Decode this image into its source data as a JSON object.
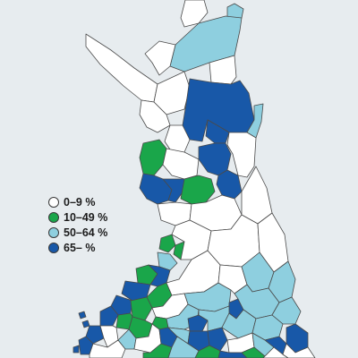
{
  "map": {
    "background": "#e7ecef",
    "land_color": "#ffffff",
    "border_color": "#4a4a4a",
    "bins": [
      {
        "key": "b0",
        "label": "0–9 %",
        "color": "#ffffff"
      },
      {
        "key": "b1",
        "label": "10–49 %",
        "color": "#1aa64a"
      },
      {
        "key": "b2",
        "label": "50–64 %",
        "color": "#8ecfdf"
      },
      {
        "key": "b3",
        "label": "65– %",
        "color": "#1858a8"
      }
    ]
  }
}
